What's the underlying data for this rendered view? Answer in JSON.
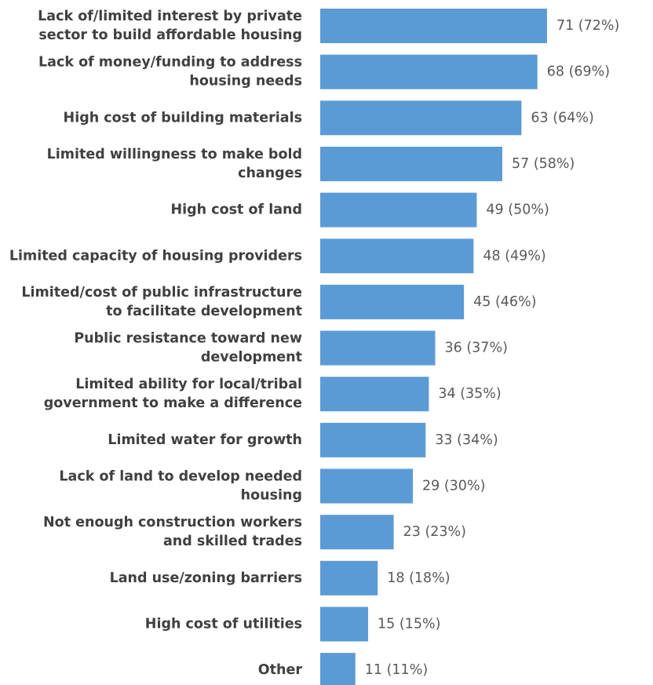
{
  "chart_data": {
    "type": "bar",
    "orientation": "horizontal",
    "bar_color": "#5B9BD5",
    "category_color": "#404040",
    "value_label_color": "#595959",
    "categories": [
      [
        "Lack of/limited interest by private",
        "sector to build affordable housing"
      ],
      [
        "Lack of money/funding to address",
        "housing needs"
      ],
      [
        "High cost of building materials"
      ],
      [
        "Limited willingness to make bold",
        "changes"
      ],
      [
        "High cost of land"
      ],
      [
        "Limited capacity of housing providers"
      ],
      [
        "Limited/cost of public infrastructure",
        "to facilitate development"
      ],
      [
        "Public resistance toward new",
        "development"
      ],
      [
        "Limited ability for local/tribal",
        "government to make a difference"
      ],
      [
        "Limited water for growth"
      ],
      [
        "Lack of land to develop needed",
        "housing"
      ],
      [
        "Not enough construction workers",
        "and skilled trades"
      ],
      [
        "Land use/zoning barriers"
      ],
      [
        "High cost of utilities"
      ],
      [
        "Other"
      ]
    ],
    "values": [
      71,
      68,
      63,
      57,
      49,
      48,
      45,
      36,
      34,
      33,
      29,
      23,
      18,
      15,
      11
    ],
    "percents": [
      "72%",
      "69%",
      "64%",
      "58%",
      "50%",
      "49%",
      "46%",
      "37%",
      "35%",
      "34%",
      "30%",
      "23%",
      "18%",
      "15%",
      "11%"
    ],
    "value_labels": [
      "71 (72%)",
      "68 (69%)",
      "63 (64%)",
      "57 (58%)",
      "49 (50%)",
      "48 (49%)",
      "45 (46%)",
      "36 (37%)",
      "34 (35%)",
      "33 (34%)",
      "29 (30%)",
      "23 (23%)",
      "18 (18%)",
      "15 (15%)",
      "11 (11%)"
    ],
    "title": "",
    "xlabel": "",
    "ylabel": "",
    "grid": false,
    "legend": "none"
  }
}
